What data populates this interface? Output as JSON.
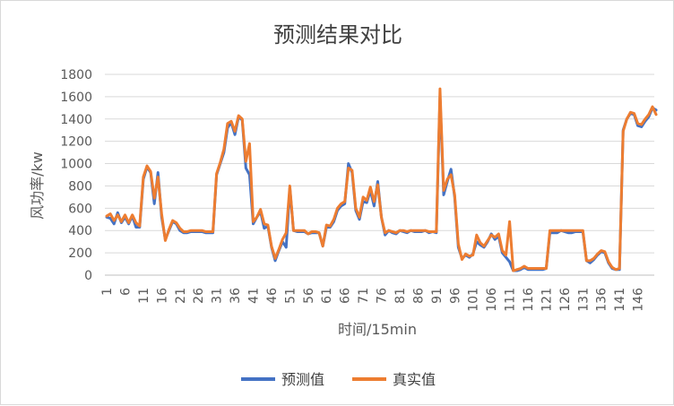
{
  "chart_data": {
    "type": "line",
    "title": "预测结果对比",
    "xlabel": "时间/15min",
    "ylabel": "风功率/kw",
    "ylim": [
      0,
      1800
    ],
    "yticks": [
      0,
      200,
      400,
      600,
      800,
      1000,
      1200,
      1400,
      1600,
      1800
    ],
    "xticks": [
      1,
      6,
      11,
      16,
      21,
      26,
      31,
      36,
      41,
      46,
      51,
      56,
      61,
      66,
      71,
      76,
      81,
      86,
      91,
      96,
      101,
      106,
      111,
      116,
      121,
      126,
      131,
      136,
      141,
      146
    ],
    "x_start": 1,
    "x_end": 150,
    "grid": "horizontal",
    "legend_position": "bottom",
    "series": [
      {
        "name": "预测值",
        "color": "#4472C4",
        "values": [
          520,
          510,
          460,
          560,
          470,
          520,
          460,
          530,
          430,
          430,
          860,
          970,
          920,
          640,
          920,
          520,
          320,
          400,
          480,
          460,
          400,
          380,
          380,
          390,
          390,
          390,
          390,
          380,
          380,
          380,
          900,
          1000,
          1100,
          1320,
          1370,
          1260,
          1420,
          1390,
          960,
          900,
          460,
          520,
          570,
          420,
          440,
          250,
          130,
          220,
          300,
          250,
          780,
          400,
          390,
          390,
          390,
          370,
          380,
          380,
          380,
          260,
          430,
          430,
          480,
          580,
          620,
          640,
          1000,
          920,
          580,
          500,
          660,
          650,
          760,
          620,
          840,
          520,
          360,
          400,
          380,
          370,
          400,
          390,
          380,
          400,
          390,
          390,
          390,
          400,
          380,
          390,
          380,
          1600,
          720,
          840,
          950,
          700,
          250,
          150,
          180,
          160,
          190,
          300,
          270,
          250,
          300,
          370,
          320,
          350,
          200,
          160,
          120,
          40,
          40,
          50,
          70,
          50,
          50,
          50,
          50,
          50,
          60,
          380,
          380,
          380,
          400,
          390,
          380,
          380,
          390,
          390,
          390,
          130,
          110,
          140,
          180,
          210,
          200,
          110,
          60,
          50,
          50,
          1300,
          1400,
          1450,
          1440,
          1340,
          1330,
          1380,
          1420,
          1500,
          1480
        ],
        "comment": ""
      },
      {
        "name": "真实值",
        "color": "#ED7D31",
        "values": [
          530,
          550,
          490,
          540,
          480,
          540,
          470,
          540,
          470,
          440,
          880,
          980,
          930,
          690,
          880,
          550,
          310,
          410,
          490,
          470,
          420,
          390,
          390,
          400,
          400,
          400,
          400,
          390,
          390,
          390,
          910,
          1010,
          1130,
          1360,
          1380,
          1290,
          1430,
          1400,
          1020,
          1180,
          480,
          520,
          590,
          460,
          450,
          260,
          150,
          230,
          320,
          380,
          800,
          400,
          400,
          400,
          400,
          370,
          390,
          390,
          380,
          260,
          450,
          440,
          500,
          600,
          640,
          660,
          960,
          940,
          600,
          520,
          700,
          670,
          790,
          660,
          810,
          520,
          380,
          400,
          390,
          380,
          400,
          400,
          390,
          400,
          400,
          400,
          400,
          400,
          390,
          390,
          390,
          1670,
          760,
          860,
          900,
          720,
          280,
          140,
          190,
          170,
          180,
          360,
          290,
          260,
          310,
          360,
          340,
          370,
          220,
          180,
          480,
          40,
          50,
          60,
          80,
          60,
          60,
          60,
          60,
          60,
          60,
          400,
          400,
          400,
          400,
          400,
          400,
          400,
          400,
          400,
          400,
          130,
          130,
          150,
          190,
          220,
          210,
          120,
          70,
          50,
          60,
          1290,
          1400,
          1460,
          1450,
          1360,
          1350,
          1400,
          1440,
          1510,
          1440
        ]
      }
    ]
  }
}
